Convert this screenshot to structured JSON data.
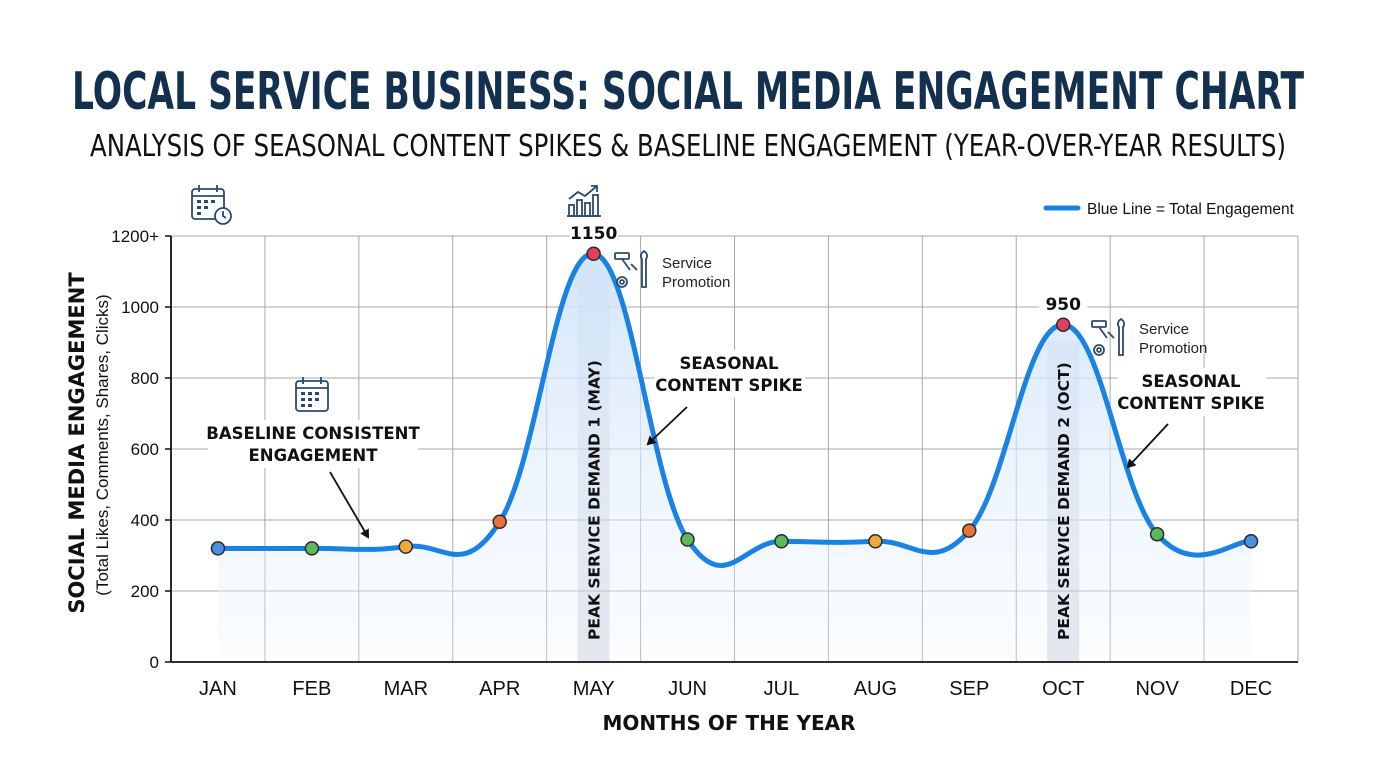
{
  "chart_data": {
    "type": "line",
    "title": "LOCAL SERVICE BUSINESS: SOCIAL MEDIA ENGAGEMENT CHART",
    "subtitle": "ANALYSIS OF SEASONAL CONTENT SPIKES & BASELINE ENGAGEMENT (YEAR-OVER-YEAR RESULTS)",
    "xlabel": "MONTHS OF THE YEAR",
    "ylabel": "SOCIAL MEDIA ENGAGEMENT",
    "ylabel_sub": "(Total Likes, Comments, Shares, Clicks)",
    "categories": [
      "JAN",
      "FEB",
      "MAR",
      "APR",
      "MAY",
      "JUN",
      "JUL",
      "AUG",
      "SEP",
      "OCT",
      "NOV",
      "DEC"
    ],
    "series": [
      {
        "values": [
          320,
          320,
          325,
          395,
          1150,
          345,
          340,
          340,
          370,
          950,
          360,
          340
        ],
        "color": "#1a82e2",
        "marker_colors": [
          "#4a8fe0",
          "#5cb85c",
          "#f0a93a",
          "#e8733a",
          "#e0405a",
          "#5cb85c",
          "#5cb85c",
          "#f0a93a",
          "#e8733a",
          "#e0405a",
          "#5cb85c",
          "#4a8fe0"
        ]
      }
    ],
    "ylim": [
      0,
      1200
    ],
    "yticks": [
      "0",
      "200",
      "400",
      "600",
      "800",
      "1000",
      "1200+"
    ],
    "grid": true,
    "legend": {
      "label": "Blue Line = Total Engagement",
      "position": "top-right"
    },
    "peak_labels": [
      {
        "index": 4,
        "text": "1150"
      },
      {
        "index": 9,
        "text": "950"
      }
    ],
    "bands": [
      {
        "index": 4,
        "text": "PEAK SERVICE DEMAND 1 (MAY)"
      },
      {
        "index": 9,
        "text": "PEAK SERVICE DEMAND 2 (OCT)"
      }
    ],
    "annotations": [
      {
        "lines": [
          "BASELINE CONSISTENT",
          "ENGAGEMENT"
        ]
      },
      {
        "lines": [
          "SEASONAL",
          "CONTENT SPIKE"
        ]
      },
      {
        "lines": [
          "SEASONAL",
          "CONTENT SPIKE"
        ]
      }
    ],
    "promo_labels": [
      {
        "lines": [
          "Service",
          "Promotion"
        ]
      },
      {
        "lines": [
          "Service",
          "Promotion"
        ]
      }
    ],
    "icons": [
      "calendar-clock-icon",
      "bar-chart-growth-icon",
      "calendar-icon",
      "tools-gear-icon",
      "tools-gear-icon"
    ]
  }
}
